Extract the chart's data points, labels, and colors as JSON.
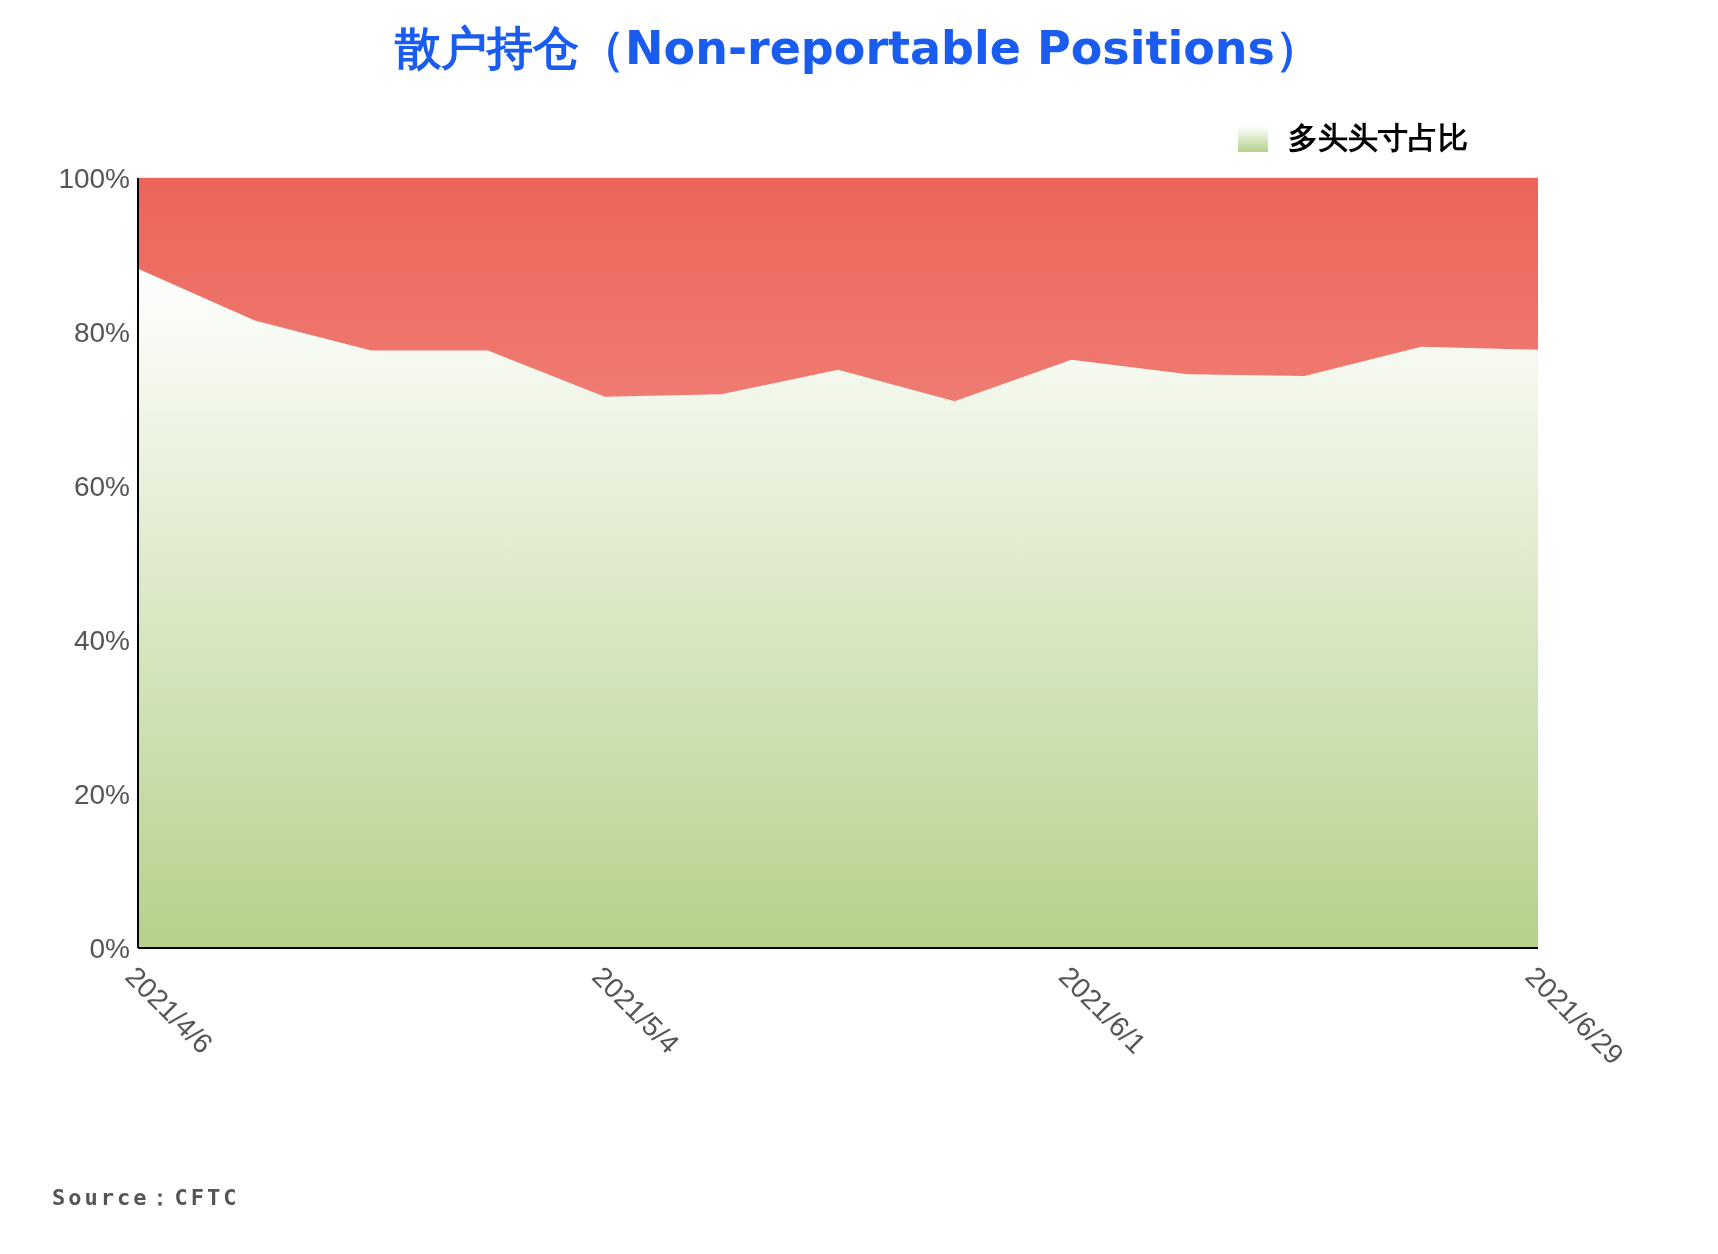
{
  "chart_data": {
    "type": "area",
    "title": "散户持仓（Non-reportable Positions）",
    "categories": [
      "2021/4/6",
      null,
      null,
      null,
      "2021/5/4",
      null,
      null,
      null,
      "2021/6/1",
      null,
      null,
      null,
      "2021/6/29"
    ],
    "series": [
      {
        "name": "多头头寸占比",
        "color": "#b5d18b",
        "values": [
          88.2,
          81.5,
          77.6,
          77.6,
          71.6,
          71.9,
          75.1,
          71.0,
          76.4,
          74.5,
          74.3,
          78.1,
          77.7
        ]
      },
      {
        "color": "#ec6459",
        "values": [
          11.8,
          18.5,
          22.4,
          22.4,
          28.4,
          28.1,
          24.9,
          29.0,
          23.6,
          25.5,
          25.7,
          21.9,
          22.3
        ]
      }
    ],
    "stacked": true,
    "ylim": [
      0,
      100
    ],
    "yticks": [
      {
        "value": 0,
        "label": "0%"
      },
      {
        "value": 20,
        "label": "20%"
      },
      {
        "value": 40,
        "label": "40%"
      },
      {
        "value": 60,
        "label": "60%"
      },
      {
        "value": 80,
        "label": "80%"
      },
      {
        "value": 100,
        "label": "100%"
      }
    ],
    "grid": "y",
    "legend": "top right",
    "annotations": [
      "Source：CFTC"
    ]
  }
}
